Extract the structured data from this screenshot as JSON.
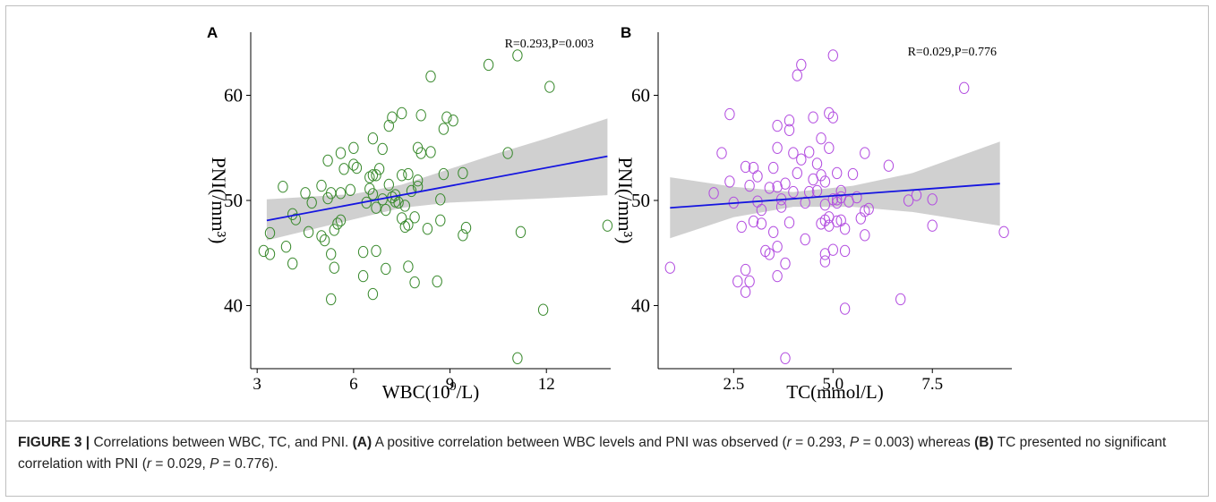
{
  "colors": {
    "axis": "#000000",
    "band": "#d0d0d0",
    "fit_line": "#1515e0",
    "panel_a_points": "#3a8a2e",
    "panel_b_points": "#b34ee0"
  },
  "chart_data": [
    {
      "type": "scatter",
      "panel_letter": "A",
      "annotation": "R=0.293,P=0.003",
      "ylabel": "PNI(/mm³)",
      "xlabel_base": "WBC(10",
      "xlabel_sup": "9",
      "xlabel_tail": "/L)",
      "xlim": [
        2.8,
        14.0
      ],
      "ylim": [
        34.0,
        66.0
      ],
      "xticks": [
        3,
        6,
        9,
        12
      ],
      "xtick_labels": [
        "3",
        "6",
        "9",
        "12"
      ],
      "yticks": [
        40,
        50,
        60
      ],
      "ytick_labels": [
        "40",
        "50",
        "60"
      ],
      "grid": false,
      "fit": {
        "x": [
          3.3,
          13.9
        ],
        "y": [
          48.1,
          54.2
        ]
      },
      "band": {
        "x": [
          3.3,
          6,
          7.5,
          9,
          10.5,
          12,
          13.9
        ],
        "lower": [
          46.2,
          48.2,
          49.3,
          49.8,
          50.0,
          50.2,
          50.5
        ],
        "upper": [
          50.1,
          50.6,
          51.5,
          53.0,
          54.5,
          55.9,
          57.8
        ]
      },
      "points": [
        {
          "x": 3.2,
          "y": 45.2
        },
        {
          "x": 3.4,
          "y": 44.9
        },
        {
          "x": 3.4,
          "y": 46.9
        },
        {
          "x": 3.8,
          "y": 51.3
        },
        {
          "x": 3.9,
          "y": 45.6
        },
        {
          "x": 4.1,
          "y": 48.7
        },
        {
          "x": 4.1,
          "y": 44.0
        },
        {
          "x": 4.2,
          "y": 48.2
        },
        {
          "x": 4.5,
          "y": 50.7
        },
        {
          "x": 4.6,
          "y": 47.0
        },
        {
          "x": 4.7,
          "y": 49.8
        },
        {
          "x": 5.0,
          "y": 51.4
        },
        {
          "x": 5.0,
          "y": 46.6
        },
        {
          "x": 5.1,
          "y": 46.2
        },
        {
          "x": 5.2,
          "y": 50.2
        },
        {
          "x": 5.2,
          "y": 53.8
        },
        {
          "x": 5.3,
          "y": 40.6
        },
        {
          "x": 5.3,
          "y": 44.9
        },
        {
          "x": 5.3,
          "y": 50.7
        },
        {
          "x": 5.4,
          "y": 43.6
        },
        {
          "x": 5.4,
          "y": 47.2
        },
        {
          "x": 5.5,
          "y": 47.8
        },
        {
          "x": 5.6,
          "y": 48.1
        },
        {
          "x": 5.6,
          "y": 50.7
        },
        {
          "x": 5.6,
          "y": 54.5
        },
        {
          "x": 5.7,
          "y": 53.0
        },
        {
          "x": 5.9,
          "y": 51.0
        },
        {
          "x": 6.0,
          "y": 53.4
        },
        {
          "x": 6.0,
          "y": 55.0
        },
        {
          "x": 6.1,
          "y": 53.1
        },
        {
          "x": 6.3,
          "y": 45.1
        },
        {
          "x": 6.3,
          "y": 42.8
        },
        {
          "x": 6.4,
          "y": 49.8
        },
        {
          "x": 6.5,
          "y": 52.2
        },
        {
          "x": 6.5,
          "y": 51.1
        },
        {
          "x": 6.6,
          "y": 52.4
        },
        {
          "x": 6.6,
          "y": 50.6
        },
        {
          "x": 6.6,
          "y": 41.1
        },
        {
          "x": 6.6,
          "y": 55.9
        },
        {
          "x": 6.7,
          "y": 45.2
        },
        {
          "x": 6.7,
          "y": 49.3
        },
        {
          "x": 6.7,
          "y": 52.4
        },
        {
          "x": 6.8,
          "y": 53.0
        },
        {
          "x": 6.9,
          "y": 54.9
        },
        {
          "x": 6.9,
          "y": 50.1
        },
        {
          "x": 7.0,
          "y": 43.5
        },
        {
          "x": 7.0,
          "y": 49.1
        },
        {
          "x": 7.1,
          "y": 51.5
        },
        {
          "x": 7.1,
          "y": 57.1
        },
        {
          "x": 7.2,
          "y": 57.9
        },
        {
          "x": 7.2,
          "y": 50.3
        },
        {
          "x": 7.3,
          "y": 50.5
        },
        {
          "x": 7.3,
          "y": 49.9
        },
        {
          "x": 7.4,
          "y": 49.8
        },
        {
          "x": 7.5,
          "y": 52.4
        },
        {
          "x": 7.5,
          "y": 48.3
        },
        {
          "x": 7.5,
          "y": 58.3
        },
        {
          "x": 7.6,
          "y": 49.5
        },
        {
          "x": 7.6,
          "y": 47.5
        },
        {
          "x": 7.7,
          "y": 43.7
        },
        {
          "x": 7.7,
          "y": 47.7
        },
        {
          "x": 7.7,
          "y": 52.5
        },
        {
          "x": 7.8,
          "y": 50.9
        },
        {
          "x": 7.9,
          "y": 48.4
        },
        {
          "x": 7.9,
          "y": 42.2
        },
        {
          "x": 8.0,
          "y": 51.9
        },
        {
          "x": 8.0,
          "y": 55.0
        },
        {
          "x": 8.0,
          "y": 51.3
        },
        {
          "x": 8.1,
          "y": 54.5
        },
        {
          "x": 8.1,
          "y": 58.1
        },
        {
          "x": 8.3,
          "y": 47.3
        },
        {
          "x": 8.4,
          "y": 61.8
        },
        {
          "x": 8.4,
          "y": 54.6
        },
        {
          "x": 8.6,
          "y": 42.3
        },
        {
          "x": 8.7,
          "y": 48.1
        },
        {
          "x": 8.7,
          "y": 50.1
        },
        {
          "x": 8.8,
          "y": 52.5
        },
        {
          "x": 8.8,
          "y": 56.8
        },
        {
          "x": 8.9,
          "y": 57.9
        },
        {
          "x": 9.1,
          "y": 57.6
        },
        {
          "x": 9.4,
          "y": 52.6
        },
        {
          "x": 9.4,
          "y": 46.7
        },
        {
          "x": 9.5,
          "y": 47.4
        },
        {
          "x": 10.2,
          "y": 62.9
        },
        {
          "x": 10.8,
          "y": 54.5
        },
        {
          "x": 11.1,
          "y": 63.8
        },
        {
          "x": 11.1,
          "y": 35.0
        },
        {
          "x": 11.2,
          "y": 47.0
        },
        {
          "x": 11.9,
          "y": 39.6
        },
        {
          "x": 12.1,
          "y": 60.8
        },
        {
          "x": 13.9,
          "y": 47.6
        }
      ]
    },
    {
      "type": "scatter",
      "panel_letter": "B",
      "annotation": "R=0.029,P=0.776",
      "ylabel": "PNI(/mm³)",
      "xlabel": "TC(mmol/L)",
      "xlim": [
        0.6,
        9.5
      ],
      "ylim": [
        34.0,
        66.0
      ],
      "xticks": [
        2.5,
        5.0,
        7.5
      ],
      "xtick_labels": [
        "2.5",
        "5.0",
        "7.5"
      ],
      "yticks": [
        40,
        50,
        60
      ],
      "ytick_labels": [
        "40",
        "50",
        "60"
      ],
      "grid": false,
      "fit": {
        "x": [
          0.9,
          9.2
        ],
        "y": [
          49.3,
          51.6
        ]
      },
      "band": {
        "x": [
          0.9,
          2.5,
          4.0,
          5.5,
          7.0,
          9.2
        ],
        "lower": [
          46.4,
          48.4,
          49.4,
          49.4,
          48.9,
          47.6
        ],
        "upper": [
          52.2,
          51.3,
          50.8,
          51.4,
          52.6,
          55.6
        ]
      },
      "points": [
        {
          "x": 0.9,
          "y": 43.6
        },
        {
          "x": 2.0,
          "y": 50.7
        },
        {
          "x": 2.2,
          "y": 54.5
        },
        {
          "x": 2.4,
          "y": 58.2
        },
        {
          "x": 2.4,
          "y": 51.8
        },
        {
          "x": 2.5,
          "y": 49.8
        },
        {
          "x": 2.6,
          "y": 42.3
        },
        {
          "x": 2.7,
          "y": 47.5
        },
        {
          "x": 2.8,
          "y": 41.3
        },
        {
          "x": 2.8,
          "y": 43.4
        },
        {
          "x": 2.8,
          "y": 53.2
        },
        {
          "x": 2.9,
          "y": 51.4
        },
        {
          "x": 2.9,
          "y": 42.3
        },
        {
          "x": 3.0,
          "y": 48.0
        },
        {
          "x": 3.0,
          "y": 53.1
        },
        {
          "x": 3.1,
          "y": 49.9
        },
        {
          "x": 3.1,
          "y": 52.3
        },
        {
          "x": 3.2,
          "y": 49.1
        },
        {
          "x": 3.2,
          "y": 47.8
        },
        {
          "x": 3.3,
          "y": 45.2
        },
        {
          "x": 3.4,
          "y": 51.2
        },
        {
          "x": 3.4,
          "y": 44.9
        },
        {
          "x": 3.5,
          "y": 53.1
        },
        {
          "x": 3.5,
          "y": 47.0
        },
        {
          "x": 3.6,
          "y": 42.8
        },
        {
          "x": 3.6,
          "y": 55.0
        },
        {
          "x": 3.6,
          "y": 57.1
        },
        {
          "x": 3.6,
          "y": 51.3
        },
        {
          "x": 3.6,
          "y": 45.6
        },
        {
          "x": 3.7,
          "y": 50.1
        },
        {
          "x": 3.7,
          "y": 49.4
        },
        {
          "x": 3.8,
          "y": 44.0
        },
        {
          "x": 3.8,
          "y": 51.6
        },
        {
          "x": 3.8,
          "y": 35.0
        },
        {
          "x": 3.9,
          "y": 56.7
        },
        {
          "x": 3.9,
          "y": 57.6
        },
        {
          "x": 3.9,
          "y": 47.9
        },
        {
          "x": 4.0,
          "y": 54.5
        },
        {
          "x": 4.0,
          "y": 50.8
        },
        {
          "x": 4.1,
          "y": 61.9
        },
        {
          "x": 4.1,
          "y": 52.6
        },
        {
          "x": 4.2,
          "y": 62.9
        },
        {
          "x": 4.2,
          "y": 53.9
        },
        {
          "x": 4.3,
          "y": 49.8
        },
        {
          "x": 4.3,
          "y": 46.3
        },
        {
          "x": 4.4,
          "y": 50.8
        },
        {
          "x": 4.4,
          "y": 54.6
        },
        {
          "x": 4.5,
          "y": 57.9
        },
        {
          "x": 4.5,
          "y": 52.0
        },
        {
          "x": 4.6,
          "y": 53.5
        },
        {
          "x": 4.6,
          "y": 50.9
        },
        {
          "x": 4.7,
          "y": 47.8
        },
        {
          "x": 4.7,
          "y": 55.9
        },
        {
          "x": 4.7,
          "y": 52.4
        },
        {
          "x": 4.8,
          "y": 51.8
        },
        {
          "x": 4.8,
          "y": 48.1
        },
        {
          "x": 4.8,
          "y": 44.9
        },
        {
          "x": 4.8,
          "y": 44.2
        },
        {
          "x": 4.8,
          "y": 49.6
        },
        {
          "x": 4.9,
          "y": 58.3
        },
        {
          "x": 4.9,
          "y": 55.0
        },
        {
          "x": 4.9,
          "y": 48.4
        },
        {
          "x": 4.9,
          "y": 47.6
        },
        {
          "x": 5.0,
          "y": 57.9
        },
        {
          "x": 5.0,
          "y": 50.1
        },
        {
          "x": 5.0,
          "y": 45.3
        },
        {
          "x": 5.0,
          "y": 63.8
        },
        {
          "x": 5.1,
          "y": 48.0
        },
        {
          "x": 5.1,
          "y": 52.6
        },
        {
          "x": 5.1,
          "y": 49.8
        },
        {
          "x": 5.1,
          "y": 50.1
        },
        {
          "x": 5.2,
          "y": 48.1
        },
        {
          "x": 5.2,
          "y": 50.3
        },
        {
          "x": 5.2,
          "y": 50.9
        },
        {
          "x": 5.3,
          "y": 45.2
        },
        {
          "x": 5.3,
          "y": 47.3
        },
        {
          "x": 5.3,
          "y": 39.7
        },
        {
          "x": 5.4,
          "y": 49.9
        },
        {
          "x": 5.5,
          "y": 52.5
        },
        {
          "x": 5.6,
          "y": 50.3
        },
        {
          "x": 5.7,
          "y": 48.3
        },
        {
          "x": 5.8,
          "y": 49.0
        },
        {
          "x": 5.8,
          "y": 46.7
        },
        {
          "x": 5.8,
          "y": 54.5
        },
        {
          "x": 5.9,
          "y": 49.2
        },
        {
          "x": 6.4,
          "y": 53.3
        },
        {
          "x": 6.7,
          "y": 40.6
        },
        {
          "x": 6.9,
          "y": 50.0
        },
        {
          "x": 7.1,
          "y": 50.5
        },
        {
          "x": 7.5,
          "y": 50.1
        },
        {
          "x": 7.5,
          "y": 47.6
        },
        {
          "x": 8.3,
          "y": 60.7
        },
        {
          "x": 9.3,
          "y": 47.0
        }
      ]
    }
  ],
  "caption": {
    "label": "FIGURE 3 |",
    "intro": " Correlations between WBC, TC, and PNI. ",
    "ref_a": "(A)",
    "part_a": " A positive correlation between WBC levels and PNI was observed (",
    "r_sym": "r",
    "eq_r_a": " = 0.293, ",
    "p_sym": "P",
    "eq_p_a": " = 0.003) whereas ",
    "ref_b": "(B)",
    "part_b": " TC presented no significant correlation with PNI (",
    "eq_r_b": " = 0.029, ",
    "eq_p_b": " = 0.776)."
  }
}
